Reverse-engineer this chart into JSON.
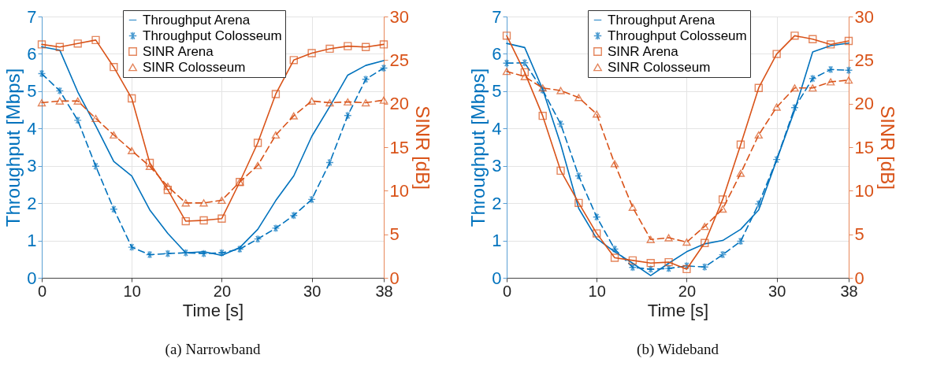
{
  "chart_data": [
    {
      "type": "line",
      "title": "(a) Narrowband",
      "xlabel": "Time [s]",
      "ylabel": "Throughput [Mbps]",
      "y2label": "SINR [dB]",
      "x": [
        0,
        2,
        4,
        6,
        8,
        10,
        12,
        14,
        16,
        18,
        20,
        22,
        24,
        26,
        28,
        30,
        32,
        34,
        36,
        38
      ],
      "xlim": [
        0,
        38
      ],
      "xticks": [
        0,
        10,
        20,
        30,
        38
      ],
      "ylim": [
        0,
        7
      ],
      "yticks": [
        0,
        1,
        2,
        3,
        4,
        5,
        6,
        7
      ],
      "y2lim": [
        0,
        30
      ],
      "y2ticks": [
        0,
        5,
        10,
        15,
        20,
        25,
        30
      ],
      "grid": true,
      "legend": "top",
      "series": [
        {
          "name": "Throughput Arena",
          "color": "#0072bd",
          "marker": "none",
          "line_style": "solid",
          "values": [
            6.19,
            6.1,
            4.98,
            4.07,
            3.12,
            2.73,
            1.82,
            1.19,
            0.67,
            0.7,
            0.6,
            0.81,
            1.3,
            2.07,
            2.73,
            3.79,
            4.59,
            5.43,
            5.69,
            5.82
          ]
        },
        {
          "name": "Throughput Colosseum",
          "color": "#0072bd",
          "marker": "cross",
          "line_style": "dashed",
          "values": [
            5.47,
            5.01,
            4.22,
            2.99,
            1.84,
            0.82,
            0.62,
            0.65,
            0.67,
            0.65,
            0.67,
            0.77,
            1.04,
            1.33,
            1.67,
            2.1,
            3.09,
            4.35,
            5.32,
            5.62
          ]
        },
        {
          "name": "SINR Arena",
          "color": "#d95319",
          "marker": "square",
          "line_style": "solid",
          "axis": "y2",
          "values": [
            26.8,
            26.5,
            26.9,
            27.3,
            24.2,
            20.6,
            13.2,
            10.1,
            6.5,
            6.6,
            6.8,
            11.0,
            15.5,
            21.1,
            25.0,
            25.8,
            26.3,
            26.6,
            26.5,
            26.8
          ]
        },
        {
          "name": "SINR Colosseum",
          "color": "#d95319",
          "marker": "triangle",
          "line_style": "dashed",
          "axis": "y2",
          "values": [
            20.1,
            20.3,
            20.3,
            18.3,
            16.4,
            14.6,
            12.8,
            10.5,
            8.6,
            8.6,
            8.9,
            11.0,
            12.9,
            16.4,
            18.6,
            20.3,
            20.1,
            20.2,
            20.1,
            20.4
          ]
        }
      ]
    },
    {
      "type": "line",
      "title": "(b) Wideband",
      "xlabel": "Time [s]",
      "ylabel": "Throughput [Mbps]",
      "y2label": "SINR [dB]",
      "x": [
        0,
        2,
        4,
        6,
        8,
        10,
        12,
        14,
        16,
        18,
        20,
        22,
        24,
        26,
        28,
        30,
        32,
        34,
        36,
        38
      ],
      "xlim": [
        0,
        38
      ],
      "xticks": [
        0,
        10,
        20,
        30,
        38
      ],
      "ylim": [
        0,
        7
      ],
      "yticks": [
        0,
        1,
        2,
        3,
        4,
        5,
        6,
        7
      ],
      "y2lim": [
        0,
        30
      ],
      "y2ticks": [
        0,
        5,
        10,
        15,
        20,
        25,
        30
      ],
      "grid": true,
      "legend": "top",
      "series": [
        {
          "name": "Throughput Arena",
          "color": "#0072bd",
          "marker": "none",
          "line_style": "solid",
          "values": [
            6.28,
            6.17,
            5.05,
            3.58,
            1.86,
            1.05,
            0.7,
            0.39,
            0.06,
            0.39,
            0.7,
            0.91,
            1.0,
            1.3,
            1.82,
            3.16,
            4.49,
            6.05,
            6.22,
            6.29
          ]
        },
        {
          "name": "Throughput Colosseum",
          "color": "#0072bd",
          "marker": "cross",
          "line_style": "dashed",
          "values": [
            5.75,
            5.76,
            5.03,
            4.12,
            2.73,
            1.63,
            0.77,
            0.28,
            0.23,
            0.25,
            0.32,
            0.29,
            0.62,
            0.98,
            1.98,
            3.17,
            4.56,
            5.34,
            5.58,
            5.56
          ]
        },
        {
          "name": "SINR Arena",
          "color": "#d95319",
          "marker": "square",
          "line_style": "solid",
          "axis": "y2",
          "values": [
            27.8,
            23.6,
            18.6,
            12.3,
            8.6,
            5.1,
            2.3,
            2.0,
            1.7,
            1.8,
            1.0,
            4.0,
            9.0,
            15.3,
            21.8,
            25.7,
            27.8,
            27.4,
            26.8,
            27.2
          ]
        },
        {
          "name": "SINR Colosseum",
          "color": "#d95319",
          "marker": "triangle",
          "line_style": "dashed",
          "axis": "y2",
          "values": [
            23.7,
            23.1,
            21.8,
            21.5,
            20.7,
            18.8,
            13.1,
            8.1,
            4.4,
            4.6,
            4.1,
            5.9,
            7.9,
            12.0,
            16.4,
            19.6,
            21.8,
            21.8,
            22.5,
            22.7
          ]
        }
      ]
    }
  ]
}
